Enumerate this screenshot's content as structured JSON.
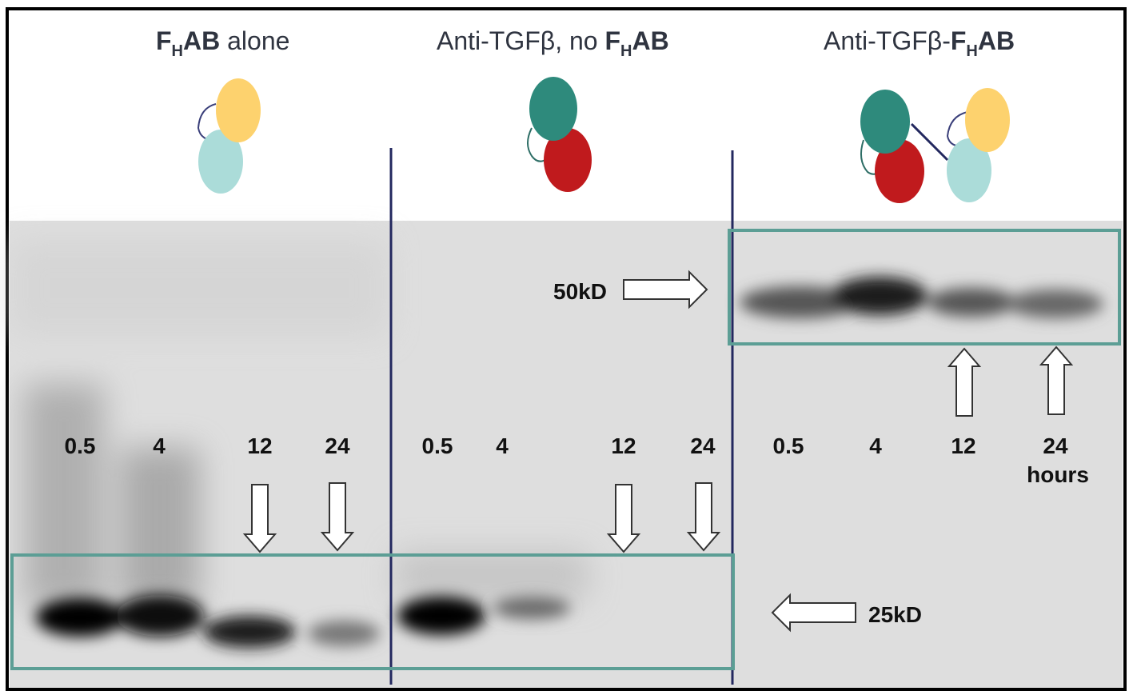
{
  "panels": [
    {
      "title": [
        "F",
        "H",
        "AB",
        " alone"
      ],
      "lanes": [
        "0.5",
        "4",
        "12",
        "24"
      ]
    },
    {
      "title": [
        "Anti-TGFβ, no ",
        "F",
        "H",
        "AB"
      ],
      "lanes": [
        "0.5",
        "4",
        "12",
        "24"
      ]
    },
    {
      "title": [
        "Anti-TGFβ-",
        "F",
        "H",
        "AB"
      ],
      "lanes": [
        "0.5",
        "4",
        "12",
        "24"
      ],
      "unit": "hours"
    }
  ],
  "markers": {
    "upper": "50kD",
    "lower": "25kD"
  }
}
